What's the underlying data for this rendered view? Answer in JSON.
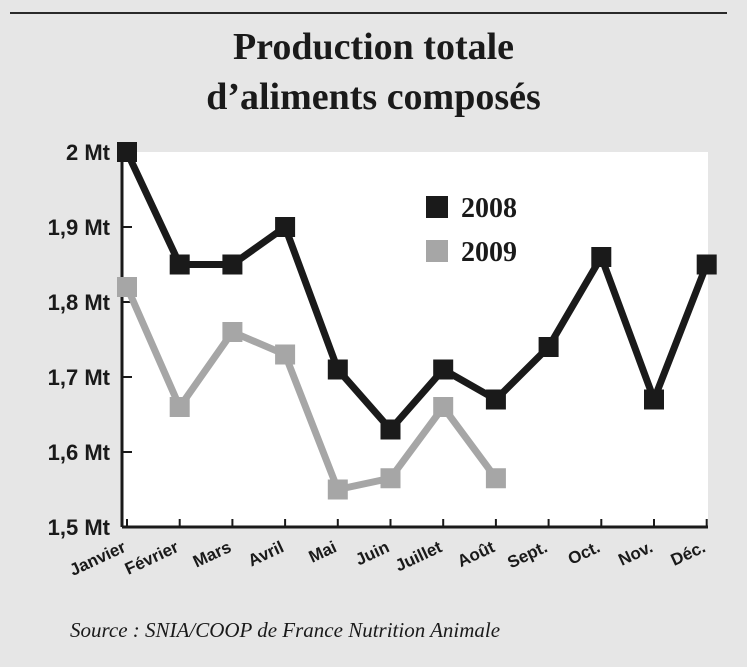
{
  "title": "Production totale\nd’aliments composés",
  "source": "Source : SNIA/COOP de France Nutrition Animale",
  "chart_data": {
    "type": "line",
    "categories": [
      "Janvier",
      "Février",
      "Mars",
      "Avril",
      "Mai",
      "Juin",
      "Juillet",
      "Août",
      "Sept.",
      "Oct.",
      "Nov.",
      "Déc."
    ],
    "y_ticks": [
      2.0,
      1.9,
      1.8,
      1.7,
      1.6,
      1.5
    ],
    "y_tick_labels": [
      "2 Mt",
      "1,9 Mt",
      "1,8 Mt",
      "1,7 Mt",
      "1,6 Mt",
      "1,5 Mt"
    ],
    "ylim": [
      1.5,
      2.0
    ],
    "legend_position": "top-center",
    "series": [
      {
        "name": "2008",
        "color": "#1a1a1a",
        "values": [
          2.0,
          1.85,
          1.85,
          1.9,
          1.71,
          1.63,
          1.71,
          1.67,
          1.74,
          1.86,
          1.67,
          1.85
        ]
      },
      {
        "name": "2009",
        "color": "#a6a6a6",
        "values": [
          1.82,
          1.66,
          1.76,
          1.73,
          1.55,
          1.565,
          1.66,
          1.565,
          null,
          null,
          null,
          null
        ]
      }
    ]
  }
}
